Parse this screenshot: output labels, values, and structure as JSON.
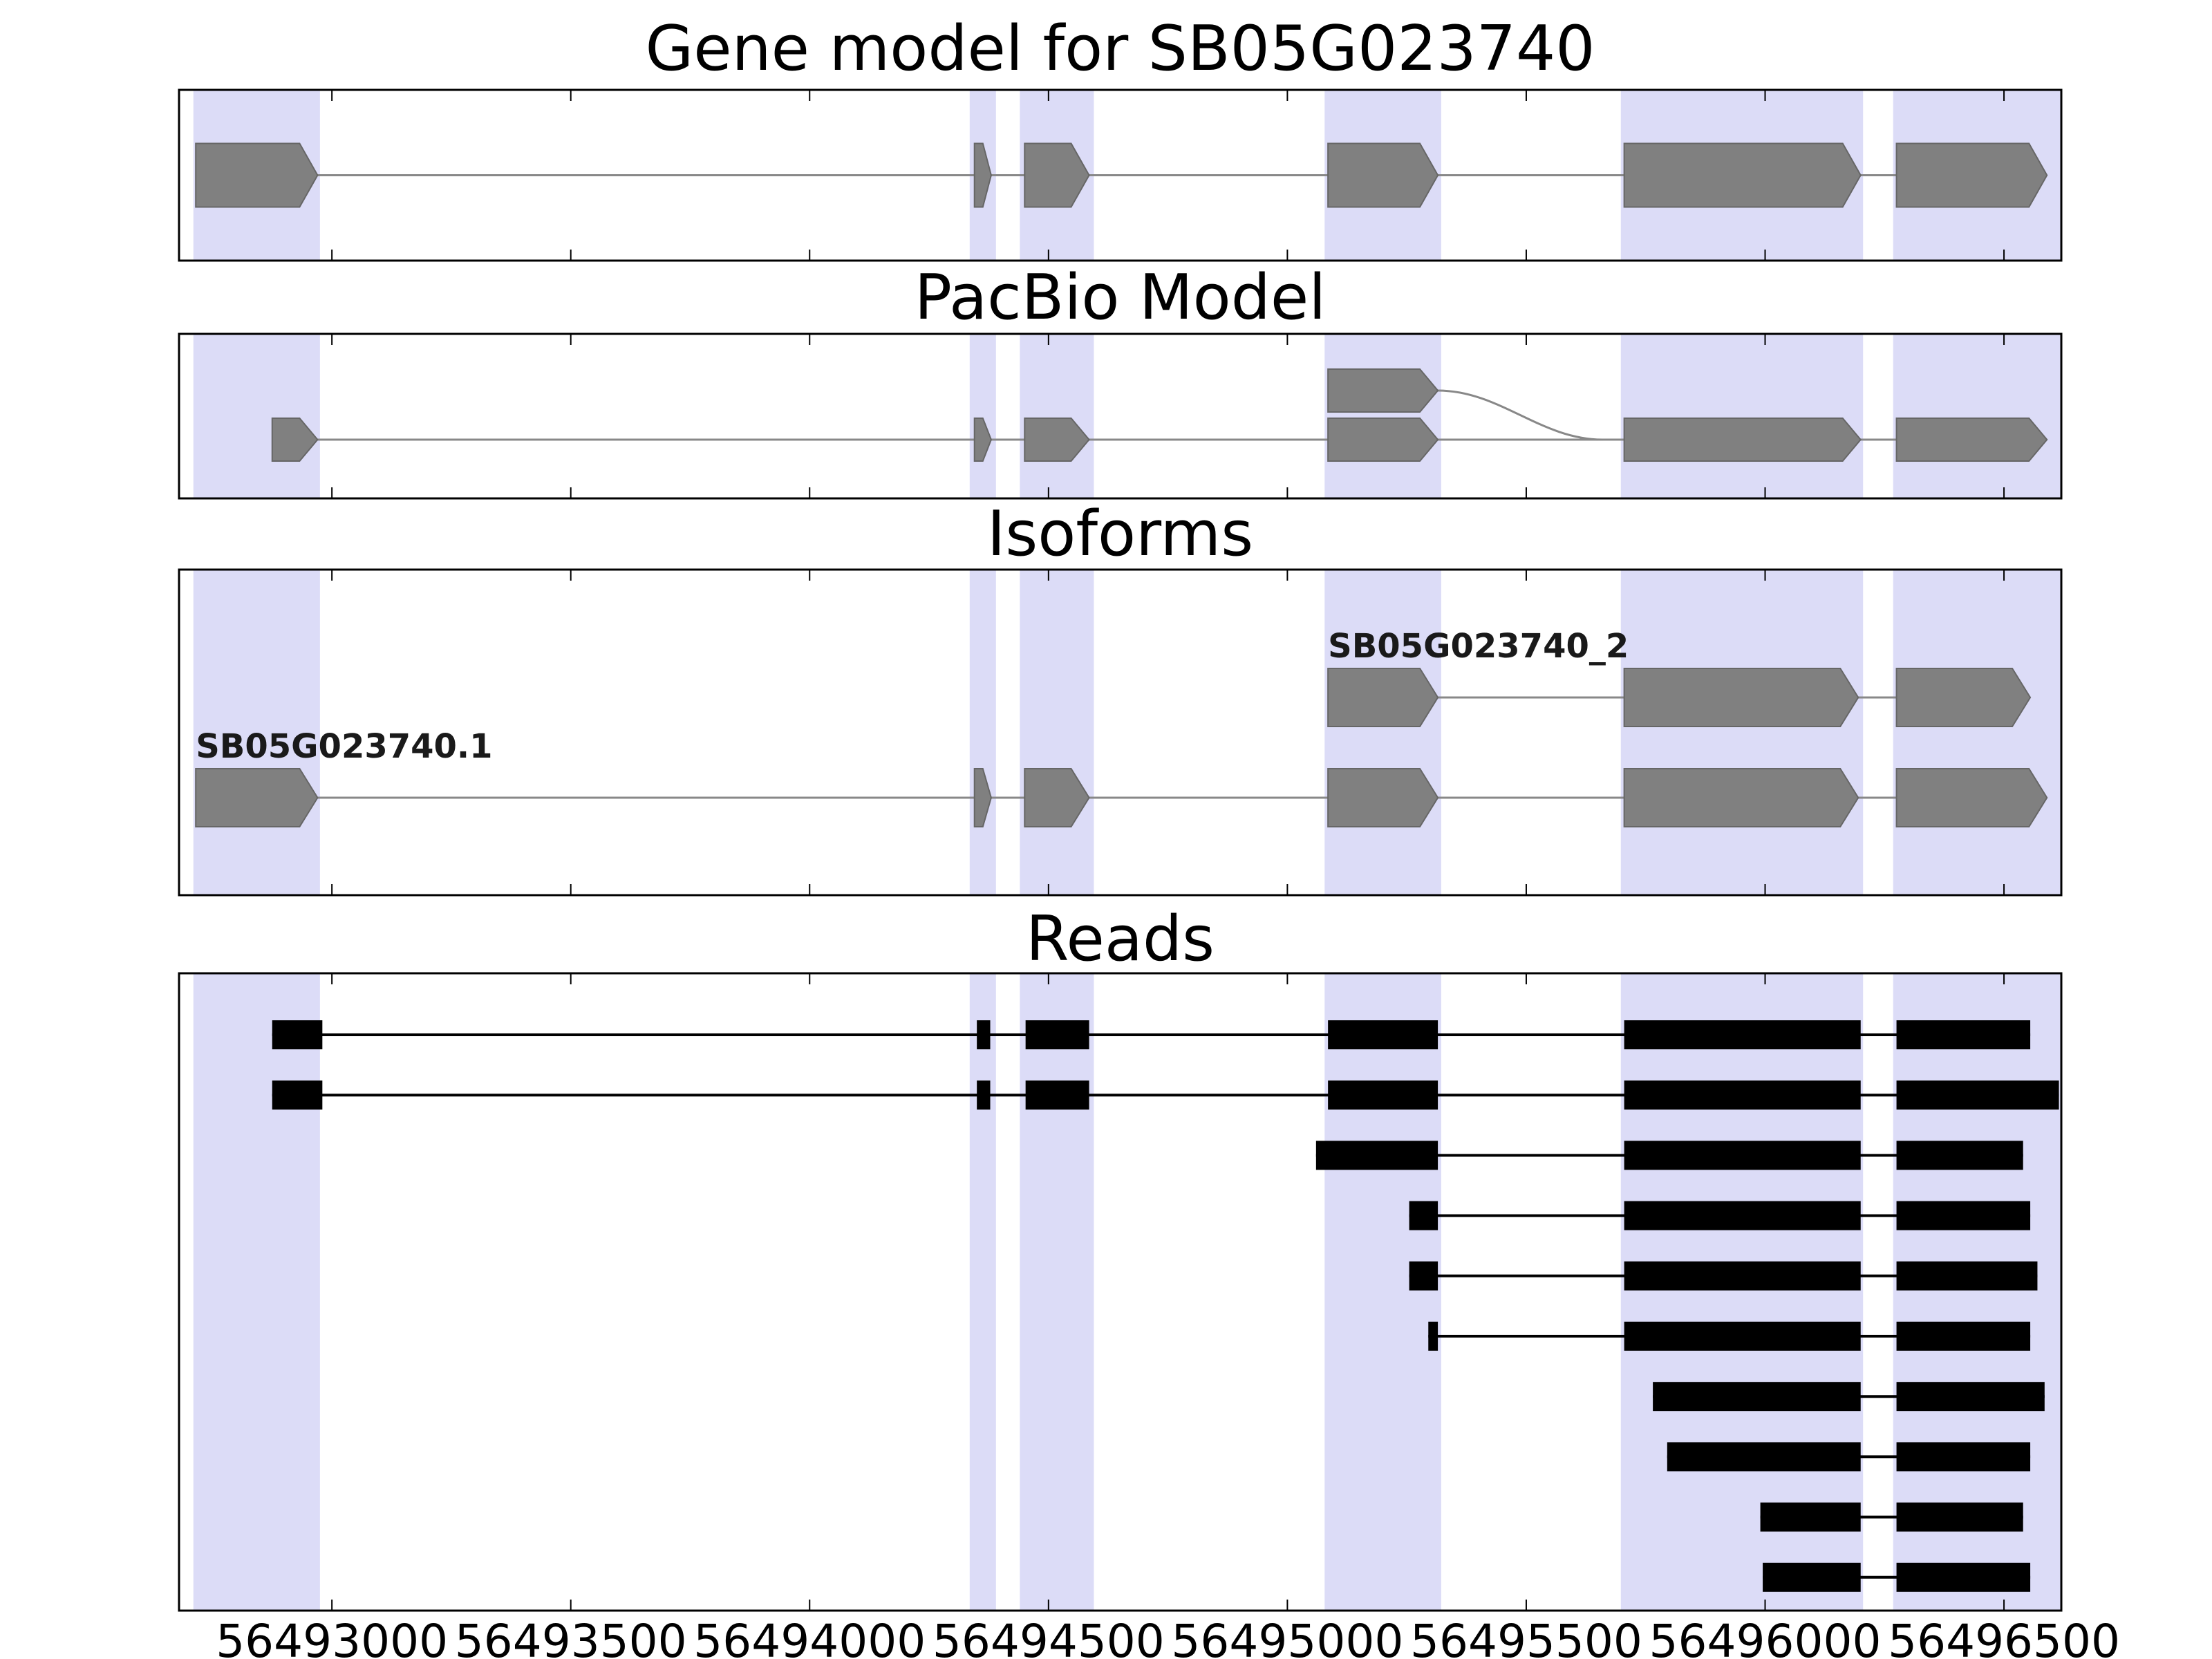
{
  "figure": {
    "background": "#ffffff",
    "border_color": "#000000"
  },
  "chart_data": {
    "type": "gene-model-tracks",
    "title": "Gene model for SB05G023740",
    "x_range": [
      56492680,
      56496620
    ],
    "x_ticks": [
      56493000,
      56493500,
      56494000,
      56494500,
      56495000,
      56495500,
      56496000,
      56496500
    ],
    "x_tick_labels": [
      "56493000",
      "56493500",
      "56494000",
      "56494500",
      "56495000",
      "56495500",
      "56496000",
      "56496500"
    ],
    "colors": {
      "highlight": "#dcdcf7",
      "feature_fill": "#808080",
      "feature_edge": "#666666",
      "model_line": "#888888",
      "read_fill": "#000000",
      "axis": "#000000"
    },
    "highlight_regions": [
      [
        56492710,
        56492975
      ],
      [
        56494335,
        56494390
      ],
      [
        56494440,
        56494595
      ],
      [
        56495078,
        56495322
      ],
      [
        56495698,
        56496205
      ],
      [
        56496268,
        56496620
      ]
    ],
    "panels": [
      {
        "id": "gene-model",
        "title": "Gene model for SB05G023740",
        "transcripts": [
          {
            "label": "",
            "row": 0,
            "exons": [
              [
                56492715,
                56492970
              ],
              [
                56494345,
                56494380
              ],
              [
                56494450,
                56494585
              ],
              [
                56495085,
                56495315
              ],
              [
                56495705,
                56496200
              ],
              [
                56496275,
                56496590
              ]
            ]
          }
        ]
      },
      {
        "id": "pacbio-model",
        "title": "PacBio Model",
        "transcripts": [
          {
            "label": "",
            "row": 0,
            "exons": [
              [
                56492875,
                56492970
              ],
              [
                56494345,
                56494380
              ],
              [
                56494450,
                56494585
              ],
              [
                56495085,
                56495315
              ],
              [
                56495705,
                56496200
              ],
              [
                56496275,
                56496590
              ]
            ]
          },
          {
            "label": "",
            "row": 1,
            "exons": [
              [
                56495085,
                56495315
              ]
            ],
            "junction": {
              "from": 56495315,
              "to": 56495660,
              "to_row": 0
            }
          }
        ]
      },
      {
        "id": "isoforms",
        "title": "Isoforms",
        "transcripts": [
          {
            "label": "SB05G023740_2",
            "row": 1,
            "exons": [
              [
                56495085,
                56495315
              ],
              [
                56495705,
                56496195
              ],
              [
                56496275,
                56496555
              ]
            ]
          },
          {
            "label": "SB05G023740.1",
            "row": 0,
            "exons": [
              [
                56492715,
                56492970
              ],
              [
                56494345,
                56494380
              ],
              [
                56494450,
                56494585
              ],
              [
                56495085,
                56495315
              ],
              [
                56495705,
                56496195
              ],
              [
                56496275,
                56496590
              ]
            ]
          }
        ]
      },
      {
        "id": "reads",
        "title": "Reads",
        "reads": [
          [
            [
              56492875,
              56492980
            ],
            [
              56494350,
              56494378
            ],
            [
              56494452,
              56494585
            ],
            [
              56495085,
              56495315
            ],
            [
              56495705,
              56496200
            ],
            [
              56496275,
              56496555
            ]
          ],
          [
            [
              56492875,
              56492980
            ],
            [
              56494350,
              56494378
            ],
            [
              56494452,
              56494585
            ],
            [
              56495085,
              56495315
            ],
            [
              56495705,
              56496200
            ],
            [
              56496275,
              56496615
            ]
          ],
          [
            [
              56495060,
              56495315
            ],
            [
              56495705,
              56496200
            ],
            [
              56496275,
              56496540
            ]
          ],
          [
            [
              56495255,
              56495315
            ],
            [
              56495705,
              56496200
            ],
            [
              56496275,
              56496555
            ]
          ],
          [
            [
              56495255,
              56495315
            ],
            [
              56495705,
              56496200
            ],
            [
              56496275,
              56496570
            ]
          ],
          [
            [
              56495295,
              56495315
            ],
            [
              56495705,
              56496200
            ],
            [
              56496275,
              56496555
            ]
          ],
          [
            [
              56495765,
              56496200
            ],
            [
              56496275,
              56496585
            ]
          ],
          [
            [
              56495795,
              56496200
            ],
            [
              56496275,
              56496555
            ]
          ],
          [
            [
              56495990,
              56496200
            ],
            [
              56496275,
              56496540
            ]
          ],
          [
            [
              56495995,
              56496200
            ],
            [
              56496275,
              56496555
            ]
          ]
        ]
      }
    ]
  }
}
